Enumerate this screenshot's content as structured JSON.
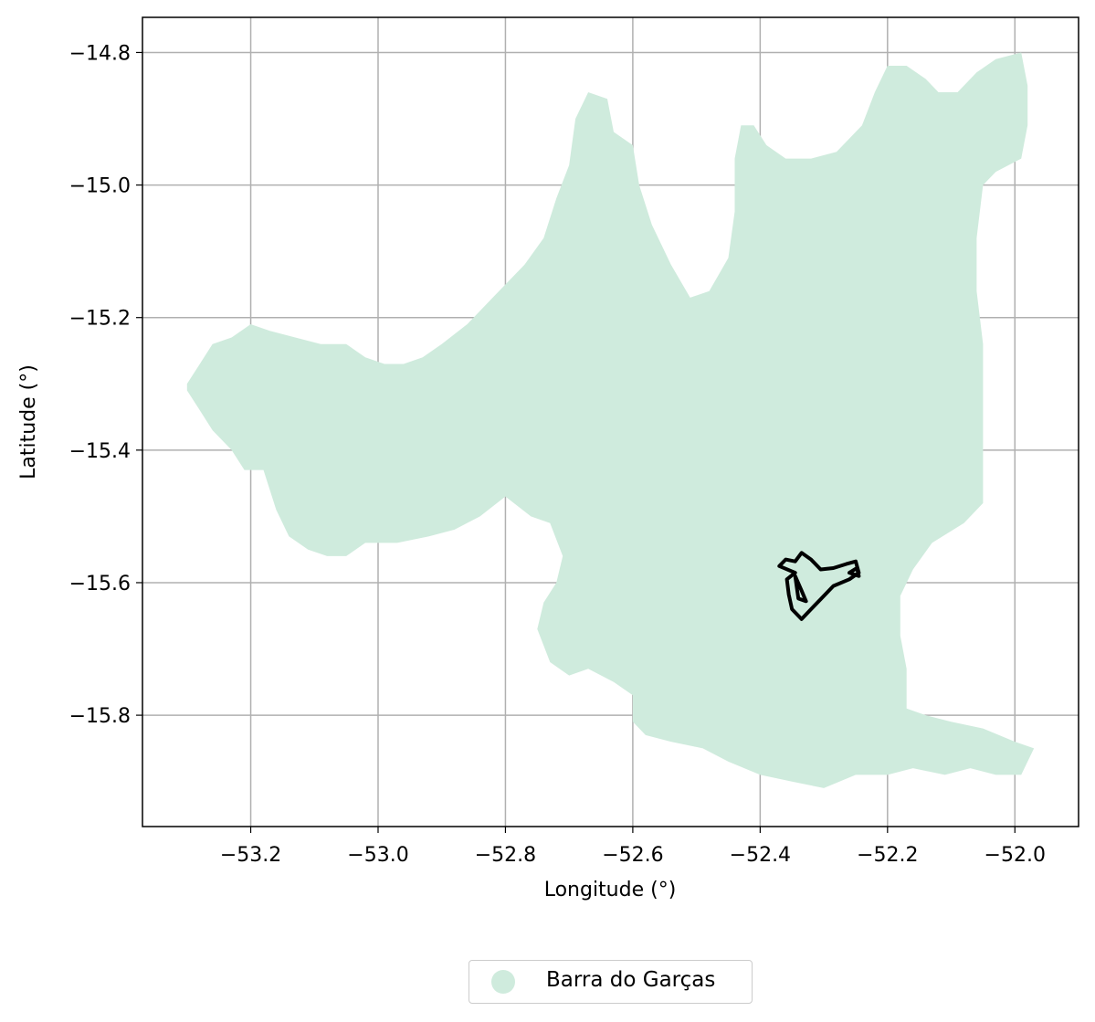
{
  "chart_data": {
    "type": "map",
    "xlabel": "Longitude (°)",
    "ylabel": "Latitude (°)",
    "xlim": [
      -53.37,
      -51.9
    ],
    "ylim": [
      -15.968,
      -14.747
    ],
    "grid": true,
    "x_ticks": [
      -53.2,
      -53.0,
      -52.8,
      -52.6,
      -52.4,
      -52.2,
      -52.0
    ],
    "x_tick_labels": [
      "−53.2",
      "−53.0",
      "−52.8",
      "−52.6",
      "−52.4",
      "−52.2",
      "−52.0"
    ],
    "y_ticks": [
      -14.8,
      -15.0,
      -15.2,
      -15.4,
      -15.6,
      -15.8
    ],
    "y_tick_labels": [
      "−14.8",
      "−15.0",
      "−15.2",
      "−15.4",
      "−15.6",
      "−15.8"
    ],
    "legend_position": "below the plot, centered",
    "layers": [
      {
        "name": "Barra do Garças",
        "kind": "filled-area",
        "fill_color": "#cfebdd",
        "outline": [
          [
            -53.3,
            -15.3
          ],
          [
            -53.28,
            -15.27
          ],
          [
            -53.26,
            -15.24
          ],
          [
            -53.23,
            -15.23
          ],
          [
            -53.2,
            -15.21
          ],
          [
            -53.17,
            -15.22
          ],
          [
            -53.13,
            -15.23
          ],
          [
            -53.09,
            -15.24
          ],
          [
            -53.05,
            -15.24
          ],
          [
            -53.02,
            -15.26
          ],
          [
            -52.99,
            -15.27
          ],
          [
            -52.96,
            -15.27
          ],
          [
            -52.93,
            -15.26
          ],
          [
            -52.9,
            -15.24
          ],
          [
            -52.86,
            -15.21
          ],
          [
            -52.82,
            -15.17
          ],
          [
            -52.77,
            -15.12
          ],
          [
            -52.74,
            -15.08
          ],
          [
            -52.72,
            -15.02
          ],
          [
            -52.7,
            -14.97
          ],
          [
            -52.69,
            -14.9
          ],
          [
            -52.67,
            -14.86
          ],
          [
            -52.64,
            -14.87
          ],
          [
            -52.63,
            -14.92
          ],
          [
            -52.6,
            -14.94
          ],
          [
            -52.59,
            -15.0
          ],
          [
            -52.57,
            -15.06
          ],
          [
            -52.54,
            -15.12
          ],
          [
            -52.51,
            -15.17
          ],
          [
            -52.48,
            -15.16
          ],
          [
            -52.45,
            -15.11
          ],
          [
            -52.44,
            -15.04
          ],
          [
            -52.44,
            -14.96
          ],
          [
            -52.43,
            -14.91
          ],
          [
            -52.41,
            -14.91
          ],
          [
            -52.39,
            -14.94
          ],
          [
            -52.36,
            -14.96
          ],
          [
            -52.32,
            -14.96
          ],
          [
            -52.28,
            -14.95
          ],
          [
            -52.24,
            -14.91
          ],
          [
            -52.22,
            -14.86
          ],
          [
            -52.2,
            -14.82
          ],
          [
            -52.17,
            -14.82
          ],
          [
            -52.14,
            -14.84
          ],
          [
            -52.12,
            -14.86
          ],
          [
            -52.09,
            -14.86
          ],
          [
            -52.06,
            -14.83
          ],
          [
            -52.03,
            -14.81
          ],
          [
            -51.99,
            -14.8
          ],
          [
            -51.98,
            -14.85
          ],
          [
            -51.98,
            -14.91
          ],
          [
            -51.99,
            -14.96
          ],
          [
            -52.03,
            -14.98
          ],
          [
            -52.05,
            -15.0
          ],
          [
            -52.06,
            -15.08
          ],
          [
            -52.06,
            -15.16
          ],
          [
            -52.05,
            -15.24
          ],
          [
            -52.05,
            -15.34
          ],
          [
            -52.05,
            -15.4
          ],
          [
            -52.05,
            -15.48
          ],
          [
            -52.08,
            -15.51
          ],
          [
            -52.13,
            -15.54
          ],
          [
            -52.16,
            -15.58
          ],
          [
            -52.18,
            -15.62
          ],
          [
            -52.18,
            -15.68
          ],
          [
            -52.17,
            -15.73
          ],
          [
            -52.17,
            -15.79
          ],
          [
            -52.14,
            -15.8
          ],
          [
            -52.1,
            -15.81
          ],
          [
            -52.05,
            -15.82
          ],
          [
            -52.0,
            -15.84
          ],
          [
            -51.97,
            -15.85
          ],
          [
            -51.99,
            -15.89
          ],
          [
            -52.03,
            -15.89
          ],
          [
            -52.07,
            -15.88
          ],
          [
            -52.11,
            -15.89
          ],
          [
            -52.16,
            -15.88
          ],
          [
            -52.2,
            -15.89
          ],
          [
            -52.25,
            -15.89
          ],
          [
            -52.3,
            -15.91
          ],
          [
            -52.35,
            -15.9
          ],
          [
            -52.4,
            -15.89
          ],
          [
            -52.45,
            -15.87
          ],
          [
            -52.49,
            -15.85
          ],
          [
            -52.54,
            -15.84
          ],
          [
            -52.58,
            -15.83
          ],
          [
            -52.6,
            -15.81
          ],
          [
            -52.6,
            -15.77
          ],
          [
            -52.63,
            -15.75
          ],
          [
            -52.67,
            -15.73
          ],
          [
            -52.7,
            -15.74
          ],
          [
            -52.73,
            -15.72
          ],
          [
            -52.75,
            -15.67
          ],
          [
            -52.74,
            -15.63
          ],
          [
            -52.72,
            -15.6
          ],
          [
            -52.71,
            -15.56
          ],
          [
            -52.73,
            -15.51
          ],
          [
            -52.76,
            -15.5
          ],
          [
            -52.8,
            -15.47
          ],
          [
            -52.84,
            -15.5
          ],
          [
            -52.88,
            -15.52
          ],
          [
            -52.92,
            -15.53
          ],
          [
            -52.97,
            -15.54
          ],
          [
            -53.02,
            -15.54
          ],
          [
            -53.05,
            -15.56
          ],
          [
            -53.08,
            -15.56
          ],
          [
            -53.11,
            -15.55
          ],
          [
            -53.14,
            -15.53
          ],
          [
            -53.16,
            -15.49
          ],
          [
            -53.18,
            -15.43
          ],
          [
            -53.21,
            -15.43
          ],
          [
            -53.23,
            -15.4
          ],
          [
            -53.26,
            -15.37
          ],
          [
            -53.28,
            -15.34
          ],
          [
            -53.3,
            -15.31
          ]
        ]
      },
      {
        "name": "boundary outline",
        "kind": "outline",
        "line_color": "#000000",
        "rings": [
          [
            [
              -52.37,
              -15.575
            ],
            [
              -52.36,
              -15.565
            ],
            [
              -52.345,
              -15.568
            ],
            [
              -52.335,
              -15.555
            ],
            [
              -52.32,
              -15.565
            ],
            [
              -52.305,
              -15.58
            ],
            [
              -52.285,
              -15.578
            ],
            [
              -52.265,
              -15.572
            ],
            [
              -52.25,
              -15.568
            ],
            [
              -52.245,
              -15.585
            ],
            [
              -52.26,
              -15.595
            ],
            [
              -52.285,
              -15.605
            ],
            [
              -52.305,
              -15.625
            ],
            [
              -52.32,
              -15.64
            ],
            [
              -52.335,
              -15.655
            ],
            [
              -52.35,
              -15.64
            ],
            [
              -52.355,
              -15.618
            ],
            [
              -52.358,
              -15.595
            ],
            [
              -52.345,
              -15.585
            ],
            [
              -52.37,
              -15.575
            ]
          ],
          [
            [
              -52.345,
              -15.59
            ],
            [
              -52.335,
              -15.612
            ],
            [
              -52.328,
              -15.628
            ],
            [
              -52.34,
              -15.624
            ],
            [
              -52.345,
              -15.59
            ]
          ],
          [
            [
              -52.26,
              -15.585
            ],
            [
              -52.248,
              -15.578
            ],
            [
              -52.245,
              -15.59
            ],
            [
              -52.26,
              -15.585
            ]
          ]
        ]
      }
    ],
    "legend": [
      {
        "label": "Barra do Garças",
        "color": "#cfebdd"
      }
    ]
  }
}
